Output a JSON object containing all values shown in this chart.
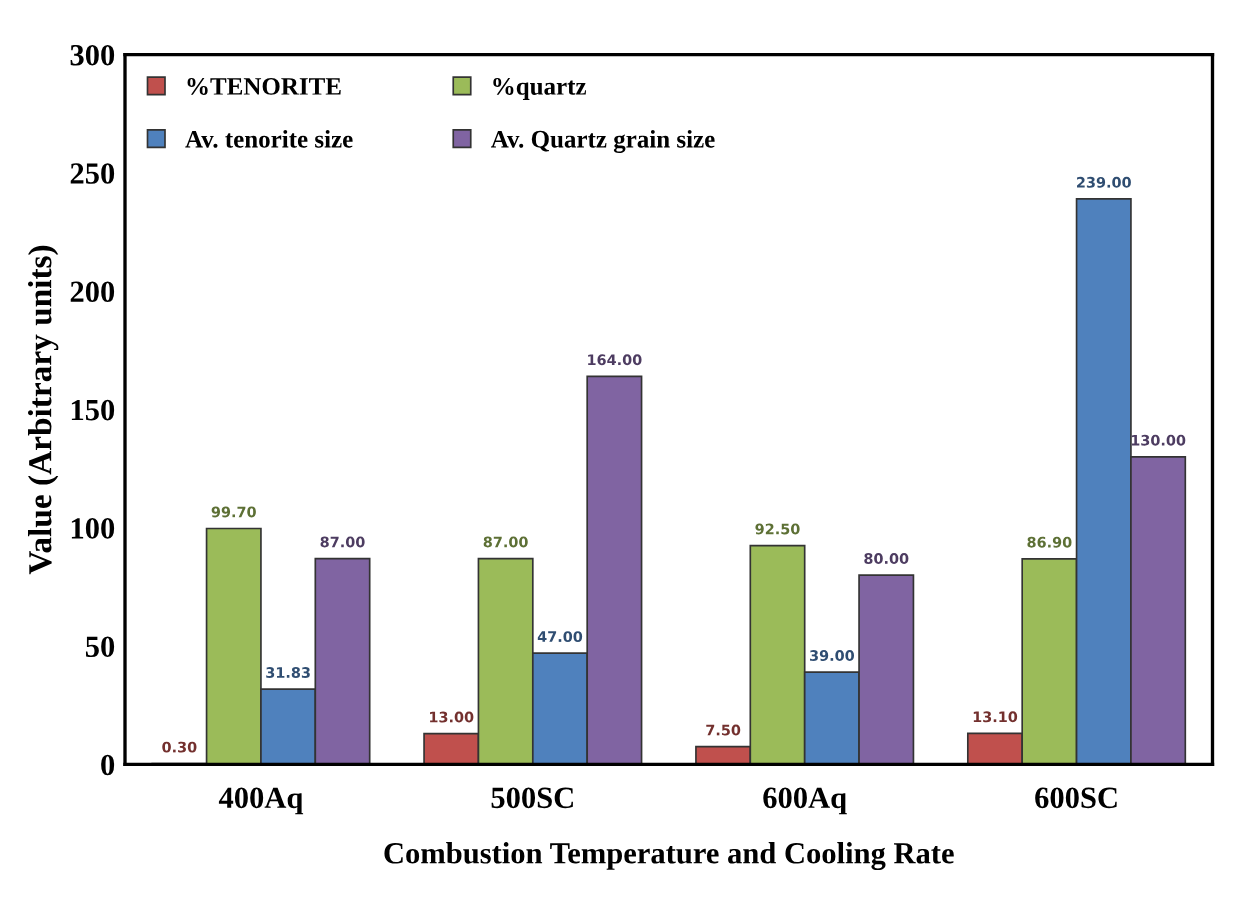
{
  "chart_data": {
    "type": "bar",
    "xlabel": "Combustion Temperature and Cooling Rate",
    "ylabel": "Value (Arbitrary units)",
    "categories": [
      "400Aq",
      "500SC",
      "600Aq",
      "600SC"
    ],
    "series": [
      {
        "name": "%TENORITE",
        "color": "#c0504d",
        "values": [
          0.3,
          13,
          7.5,
          13.1
        ],
        "value_labels": [
          "0.30",
          "13.00",
          "7.50",
          "13.10"
        ]
      },
      {
        "name": "%quartz",
        "color": "#9bbb59",
        "values": [
          99.7,
          87,
          92.5,
          86.9
        ],
        "value_labels": [
          "99.70",
          "87.00",
          "92.50",
          "86.90"
        ]
      },
      {
        "name": "Av. tenorite size",
        "color": "#4f81bd",
        "values": [
          31.83,
          47,
          39,
          239
        ],
        "value_labels": [
          "31.83",
          "47.00",
          "39.00",
          "239.00"
        ]
      },
      {
        "name": "Av. Quartz grain size",
        "color": "#8064a2",
        "values": [
          87,
          164,
          80,
          130
        ],
        "value_labels": [
          "87.00",
          "164.00",
          "80.00",
          "130.00"
        ]
      }
    ],
    "ylim": [
      0,
      300
    ],
    "yticks": [
      0,
      50,
      100,
      150,
      200,
      250,
      300
    ],
    "grid": false,
    "legend": "top left"
  }
}
